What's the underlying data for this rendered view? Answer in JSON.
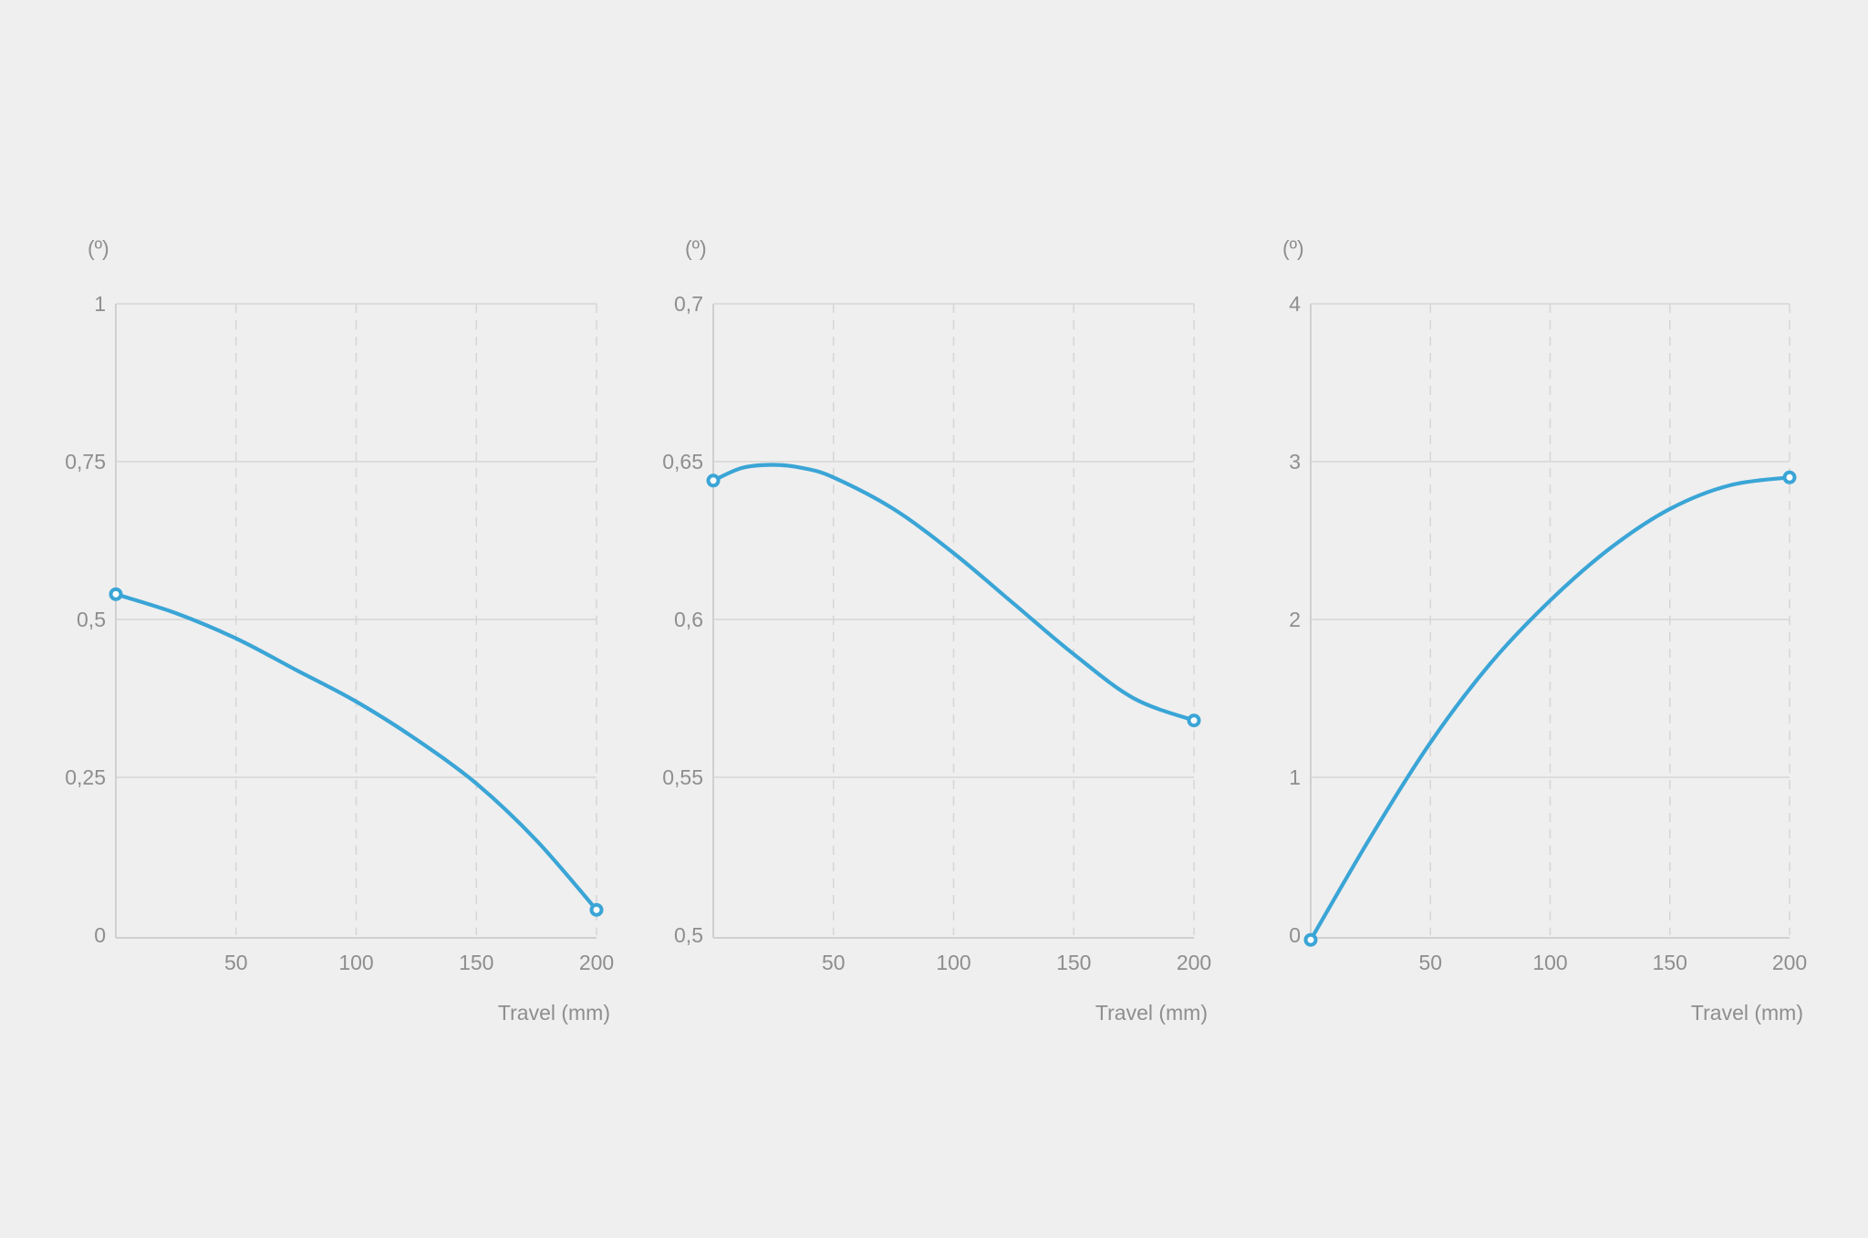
{
  "colors": {
    "background": "#efefef",
    "series": "#3aa5d6",
    "grid": "#dcdcdc",
    "text": "#8e8e8e"
  },
  "chart_data": [
    {
      "type": "line",
      "ylabel": "(º)",
      "xlabel": "Travel (mm)",
      "xlim": [
        0,
        200
      ],
      "ylim": [
        0,
        1
      ],
      "x_ticks": [
        50,
        100,
        150,
        200
      ],
      "y_ticks": [
        0,
        0.25,
        0.5,
        0.75,
        1
      ],
      "y_tick_labels": [
        "0",
        "0,25",
        "0,5",
        "0,75",
        "1"
      ],
      "grid": true,
      "series": [
        {
          "x": [
            0,
            25,
            50,
            75,
            100,
            125,
            150,
            175,
            200
          ],
          "y": [
            0.54,
            0.51,
            0.47,
            0.42,
            0.37,
            0.31,
            0.24,
            0.15,
            0.04
          ],
          "endpoint_markers": true
        }
      ]
    },
    {
      "type": "line",
      "ylabel": "(º)",
      "xlabel": "Travel (mm)",
      "xlim": [
        0,
        200
      ],
      "ylim": [
        0.5,
        0.7
      ],
      "x_ticks": [
        50,
        100,
        150,
        200
      ],
      "y_ticks": [
        0.5,
        0.55,
        0.6,
        0.65,
        0.7
      ],
      "y_tick_labels": [
        "0,5",
        "0,55",
        "0,6",
        "0,65",
        "0,7"
      ],
      "grid": true,
      "series": [
        {
          "x": [
            0,
            12,
            25,
            37,
            50,
            75,
            100,
            125,
            150,
            175,
            200
          ],
          "y": [
            0.644,
            0.648,
            0.649,
            0.648,
            0.645,
            0.635,
            0.621,
            0.605,
            0.589,
            0.575,
            0.568
          ],
          "endpoint_markers": true
        }
      ]
    },
    {
      "type": "line",
      "ylabel": "(º)",
      "xlabel": "Travel (mm)",
      "xlim": [
        0,
        200
      ],
      "ylim": [
        0,
        4
      ],
      "x_ticks": [
        50,
        100,
        150,
        200
      ],
      "y_ticks": [
        0,
        1,
        2,
        3,
        4
      ],
      "y_tick_labels": [
        "0",
        "1",
        "2",
        "3",
        "4"
      ],
      "grid": true,
      "series": [
        {
          "x": [
            0,
            25,
            50,
            75,
            100,
            125,
            150,
            175,
            200
          ],
          "y": [
            -0.03,
            0.62,
            1.22,
            1.72,
            2.12,
            2.45,
            2.7,
            2.85,
            2.9
          ],
          "endpoint_markers": true
        }
      ]
    }
  ]
}
